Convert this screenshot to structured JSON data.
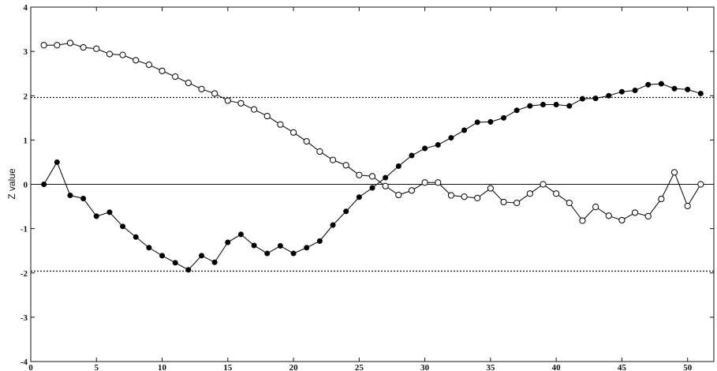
{
  "chart_data": {
    "type": "line",
    "ylabel": "Z value",
    "xlabel": "",
    "xlim": [
      0,
      52
    ],
    "ylim": [
      -4,
      4
    ],
    "xticks": [
      0,
      5,
      10,
      15,
      20,
      25,
      30,
      35,
      40,
      45,
      50
    ],
    "yticks": [
      -4,
      -3,
      -2,
      -1,
      0,
      1,
      2,
      3,
      4
    ],
    "grid": false,
    "reference_lines": [
      {
        "y": 1.96,
        "style": "dotted"
      },
      {
        "y": -1.96,
        "style": "dotted"
      },
      {
        "y": 0,
        "style": "solid"
      }
    ],
    "x": [
      1,
      2,
      3,
      4,
      5,
      6,
      7,
      8,
      9,
      10,
      11,
      12,
      13,
      14,
      15,
      16,
      17,
      18,
      19,
      20,
      21,
      22,
      23,
      24,
      25,
      26,
      27,
      28,
      29,
      30,
      31,
      32,
      33,
      34,
      35,
      36,
      37,
      38,
      39,
      40,
      41,
      42,
      43,
      44,
      45,
      46,
      47,
      48,
      49,
      50,
      51
    ],
    "series": [
      {
        "marker": "filled-circle",
        "color": "#000000",
        "values": [
          0.0,
          0.5,
          -0.25,
          -0.32,
          -0.72,
          -0.63,
          -0.95,
          -1.19,
          -1.43,
          -1.61,
          -1.77,
          -1.93,
          -1.61,
          -1.76,
          -1.31,
          -1.13,
          -1.38,
          -1.56,
          -1.39,
          -1.56,
          -1.43,
          -1.28,
          -0.92,
          -0.61,
          -0.29,
          -0.08,
          0.15,
          0.41,
          0.65,
          0.81,
          0.89,
          1.05,
          1.22,
          1.4,
          1.41,
          1.5,
          1.67,
          1.77,
          1.8,
          1.8,
          1.77,
          1.93,
          1.94,
          2.0,
          2.09,
          2.12,
          2.25,
          2.27,
          2.16,
          2.14,
          2.05
        ]
      },
      {
        "marker": "open-circle",
        "color": "#000000",
        "values": [
          3.14,
          3.14,
          3.19,
          3.09,
          3.06,
          2.94,
          2.92,
          2.8,
          2.7,
          2.56,
          2.43,
          2.29,
          2.15,
          2.05,
          1.89,
          1.83,
          1.69,
          1.54,
          1.35,
          1.17,
          0.97,
          0.74,
          0.55,
          0.43,
          0.21,
          0.18,
          -0.04,
          -0.24,
          -0.14,
          0.04,
          0.04,
          -0.25,
          -0.28,
          -0.31,
          -0.09,
          -0.4,
          -0.42,
          -0.21,
          0.0,
          -0.21,
          -0.42,
          -0.82,
          -0.51,
          -0.71,
          -0.81,
          -0.64,
          -0.72,
          -0.33,
          0.27,
          -0.49,
          0.0
        ]
      }
    ]
  }
}
